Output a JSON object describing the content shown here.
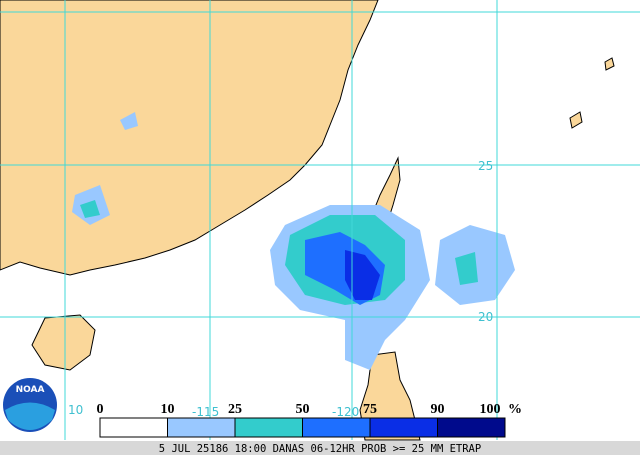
{
  "map": {
    "grid_labels": {
      "lat": [
        "25",
        "20",
        "10"
      ],
      "lon": [
        "-115",
        "-120"
      ]
    },
    "legend": {
      "items": [
        {
          "label": "0",
          "color": "#ffffff"
        },
        {
          "label": "10",
          "color": "#99c8ff"
        },
        {
          "label": "25",
          "color": "#33cccc"
        },
        {
          "label": "50",
          "color": "#1e6fff"
        },
        {
          "label": "75",
          "color": "#0a2ee6"
        },
        {
          "label": "90",
          "color": "#000a8c"
        }
      ],
      "end_label": "100",
      "unit": "%"
    },
    "logo": "NOAA",
    "footer": "5 JUL 25186 18:00 DANAS 06-12HR PROB >= 25 MM ETRAP"
  }
}
